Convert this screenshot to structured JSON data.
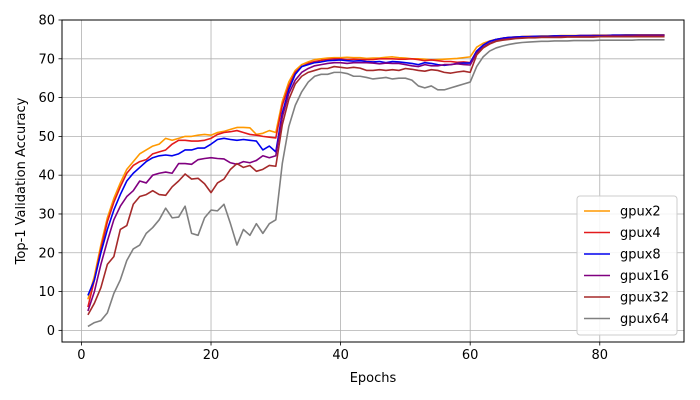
{
  "chart_data": {
    "type": "line",
    "title": "",
    "xlabel": "Epochs",
    "ylabel": "Top-1 Validation Accuracy",
    "xlim": [
      -3,
      93
    ],
    "ylim": [
      -3,
      80
    ],
    "xticks": [
      0,
      20,
      40,
      60,
      80
    ],
    "yticks": [
      0,
      10,
      20,
      30,
      40,
      50,
      60,
      70,
      80
    ],
    "grid": true,
    "legend_position": "lower-right",
    "x": [
      1,
      2,
      3,
      4,
      5,
      6,
      7,
      8,
      9,
      10,
      11,
      12,
      13,
      14,
      15,
      16,
      17,
      18,
      19,
      20,
      21,
      22,
      23,
      24,
      25,
      26,
      27,
      28,
      29,
      30,
      31,
      32,
      33,
      34,
      35,
      36,
      37,
      38,
      39,
      40,
      41,
      42,
      43,
      44,
      45,
      46,
      47,
      48,
      49,
      50,
      51,
      52,
      53,
      54,
      55,
      56,
      57,
      58,
      59,
      60,
      61,
      62,
      63,
      64,
      65,
      66,
      67,
      68,
      69,
      70,
      71,
      72,
      73,
      74,
      75,
      76,
      77,
      78,
      79,
      80,
      81,
      82,
      83,
      84,
      85,
      86,
      87,
      88,
      89,
      90
    ],
    "series": [
      {
        "name": "gpux2",
        "color": "#ff9900",
        "values": [
          8.0,
          14.0,
          22.0,
          29.0,
          34.0,
          38.0,
          41.5,
          43.5,
          45.5,
          46.5,
          47.5,
          48.0,
          49.5,
          49.0,
          49.5,
          50.0,
          50.0,
          50.3,
          50.5,
          50.3,
          51.0,
          51.3,
          51.8,
          52.3,
          52.3,
          52.2,
          50.5,
          50.8,
          51.5,
          51.0,
          59.0,
          64.0,
          67.0,
          68.5,
          69.2,
          69.8,
          70.0,
          70.2,
          70.3,
          70.3,
          70.4,
          70.3,
          70.3,
          70.1,
          70.2,
          70.2,
          70.4,
          70.5,
          70.3,
          70.2,
          70.0,
          70.0,
          69.9,
          69.7,
          69.8,
          69.9,
          70.0,
          70.1,
          70.3,
          70.5,
          73.0,
          74.0,
          74.6,
          75.0,
          75.3,
          75.5,
          75.6,
          75.7,
          75.8,
          75.8,
          75.9,
          75.9,
          75.9,
          76.0,
          76.0,
          76.0,
          76.0,
          76.0,
          76.1,
          76.1,
          76.1,
          76.1,
          76.1,
          76.2,
          76.2,
          76.2,
          76.2,
          76.2,
          76.2,
          76.2
        ]
      },
      {
        "name": "gpux4",
        "color": "#e31a1c",
        "values": [
          6.0,
          13.0,
          21.0,
          28.0,
          33.0,
          37.0,
          40.5,
          42.5,
          43.5,
          44.0,
          45.5,
          46.0,
          46.5,
          48.0,
          49.0,
          49.0,
          48.8,
          48.8,
          49.0,
          49.5,
          50.5,
          51.0,
          51.2,
          51.5,
          51.0,
          50.5,
          50.3,
          50.0,
          49.8,
          49.6,
          58.0,
          63.0,
          66.5,
          68.0,
          68.8,
          69.3,
          69.6,
          69.8,
          70.0,
          70.0,
          69.8,
          69.9,
          69.8,
          69.8,
          69.8,
          70.0,
          70.0,
          70.0,
          69.9,
          69.9,
          70.0,
          69.8,
          69.5,
          69.7,
          69.5,
          69.3,
          69.3,
          69.1,
          69.2,
          69.0,
          72.0,
          73.5,
          74.5,
          75.0,
          75.3,
          75.5,
          75.6,
          75.7,
          75.7,
          75.8,
          75.8,
          75.8,
          75.9,
          75.9,
          75.9,
          75.9,
          76.0,
          76.0,
          76.0,
          76.0,
          76.0,
          76.1,
          76.1,
          76.1,
          76.1,
          76.1,
          76.1,
          76.1,
          76.1,
          76.1
        ]
      },
      {
        "name": "gpux8",
        "color": "#0000ee",
        "values": [
          9.0,
          13.0,
          20.0,
          26.0,
          31.0,
          35.0,
          38.5,
          40.5,
          42.0,
          43.5,
          44.5,
          45.0,
          45.2,
          45.0,
          45.5,
          46.5,
          46.5,
          47.0,
          47.0,
          48.0,
          49.2,
          49.5,
          49.2,
          49.0,
          49.2,
          49.0,
          48.8,
          46.5,
          47.5,
          46.0,
          56.0,
          62.0,
          66.0,
          68.0,
          68.5,
          69.0,
          69.2,
          69.5,
          69.6,
          69.7,
          69.5,
          69.4,
          69.5,
          69.3,
          69.2,
          69.3,
          69.0,
          69.3,
          69.2,
          69.0,
          68.8,
          68.5,
          69.0,
          68.8,
          68.5,
          68.3,
          68.5,
          68.8,
          68.9,
          68.9,
          72.0,
          73.5,
          74.5,
          75.0,
          75.3,
          75.5,
          75.6,
          75.7,
          75.7,
          75.8,
          75.8,
          75.8,
          75.9,
          75.9,
          75.9,
          75.9,
          76.0,
          76.0,
          76.0,
          76.0,
          76.0,
          76.1,
          76.1,
          76.1,
          76.1,
          76.1,
          76.1,
          76.1,
          76.1,
          76.1
        ]
      },
      {
        "name": "gpux16",
        "color": "#800080",
        "values": [
          5.0,
          10.0,
          17.0,
          23.0,
          28.5,
          32.0,
          34.5,
          36.0,
          38.5,
          38.0,
          40.0,
          40.5,
          40.8,
          40.5,
          43.0,
          43.0,
          42.8,
          44.0,
          44.3,
          44.5,
          44.3,
          44.2,
          43.2,
          42.8,
          43.5,
          43.2,
          43.8,
          45.0,
          44.5,
          45.0,
          55.0,
          61.0,
          64.5,
          66.5,
          67.5,
          68.2,
          68.5,
          68.8,
          69.0,
          69.0,
          68.8,
          69.0,
          69.0,
          69.0,
          68.9,
          68.7,
          68.9,
          68.8,
          68.8,
          68.5,
          68.2,
          68.0,
          68.5,
          68.2,
          68.2,
          68.5,
          68.5,
          68.7,
          68.5,
          68.4,
          71.5,
          73.0,
          74.0,
          74.6,
          75.0,
          75.2,
          75.3,
          75.4,
          75.5,
          75.5,
          75.6,
          75.6,
          75.6,
          75.7,
          75.7,
          75.7,
          75.8,
          75.8,
          75.8,
          75.8,
          75.9,
          75.9,
          75.9,
          75.9,
          75.9,
          76.0,
          76.0,
          76.0,
          76.0,
          76.0
        ]
      },
      {
        "name": "gpux32",
        "color": "#a52a2a",
        "values": [
          4.0,
          7.0,
          11.0,
          17.0,
          19.0,
          26.0,
          27.0,
          32.5,
          34.5,
          35.0,
          36.0,
          35.0,
          34.8,
          37.0,
          38.5,
          40.3,
          39.0,
          39.2,
          37.8,
          35.5,
          38.0,
          39.0,
          41.5,
          43.0,
          42.0,
          42.5,
          41.0,
          41.5,
          42.5,
          42.3,
          53.0,
          59.5,
          63.5,
          65.5,
          66.5,
          67.0,
          67.5,
          67.5,
          68.0,
          67.8,
          67.6,
          67.8,
          67.6,
          67.0,
          67.0,
          67.2,
          67.0,
          67.2,
          67.0,
          67.5,
          67.3,
          67.0,
          66.8,
          67.2,
          67.0,
          66.5,
          66.3,
          66.6,
          66.8,
          66.5,
          71.0,
          72.8,
          73.8,
          74.5,
          74.8,
          75.0,
          75.2,
          75.3,
          75.4,
          75.4,
          75.5,
          75.5,
          75.5,
          75.5,
          75.6,
          75.6,
          75.6,
          75.6,
          75.6,
          75.7,
          75.7,
          75.7,
          75.7,
          75.7,
          75.7,
          75.7,
          75.7,
          75.7,
          75.7,
          75.7
        ]
      },
      {
        "name": "gpux64",
        "color": "#808080",
        "values": [
          1.0,
          2.0,
          2.5,
          4.5,
          9.5,
          13.0,
          18.0,
          21.0,
          22.0,
          25.0,
          26.5,
          28.5,
          31.5,
          29.0,
          29.2,
          32.0,
          25.0,
          24.5,
          29.0,
          31.0,
          30.8,
          32.5,
          27.5,
          22.0,
          26.0,
          24.5,
          27.5,
          25.0,
          27.5,
          28.5,
          43.0,
          52.5,
          58.0,
          61.5,
          64.0,
          65.5,
          66.0,
          66.0,
          66.5,
          66.5,
          66.2,
          65.5,
          65.5,
          65.2,
          64.8,
          65.0,
          65.2,
          64.8,
          65.0,
          65.0,
          64.5,
          63.0,
          62.5,
          63.0,
          62.0,
          62.0,
          62.5,
          63.0,
          63.5,
          64.0,
          68.0,
          70.5,
          72.0,
          72.8,
          73.3,
          73.7,
          74.0,
          74.2,
          74.3,
          74.4,
          74.5,
          74.5,
          74.6,
          74.6,
          74.6,
          74.7,
          74.7,
          74.7,
          74.7,
          74.8,
          74.8,
          74.8,
          74.8,
          74.8,
          74.8,
          74.9,
          74.9,
          74.9,
          74.9,
          74.9
        ]
      }
    ]
  }
}
